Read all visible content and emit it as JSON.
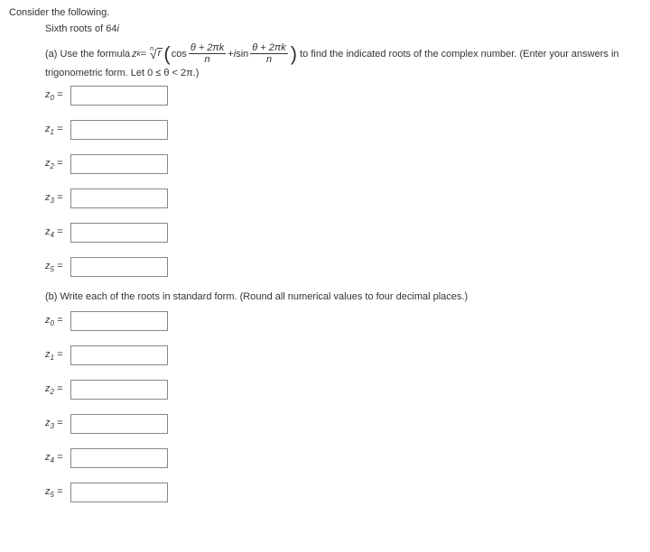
{
  "intro": {
    "consider": "Consider the following.",
    "problem": "Sixth roots of 64"
  },
  "partA": {
    "lead": "(a) Use the formula ",
    "zk": "z",
    "zk_sub": "k",
    "eq": " = ",
    "root_index": "n",
    "radicand": "r",
    "cos_word": "cos ",
    "frac_num": "θ + 2πk",
    "frac_den": "n",
    "plus_isin": " + ",
    "i": "i",
    "sin_word": " sin ",
    "tail": " to find the indicated roots of the complex number. (Enter your answers in",
    "line2": "trigonometric form. Let 0 ≤ θ < 2π.)"
  },
  "labels": {
    "z0": "z",
    "s0": "0",
    "z1": "z",
    "s1": "1",
    "z2": "z",
    "s2": "2",
    "z3": "z",
    "s3": "3",
    "z4": "z",
    "s4": "4",
    "z5": "z",
    "s5": "5",
    "eq": " = "
  },
  "partB": {
    "text": "(b) Write each of the roots in standard form. (Round all numerical values to four decimal places.)"
  },
  "problem_i": "i"
}
